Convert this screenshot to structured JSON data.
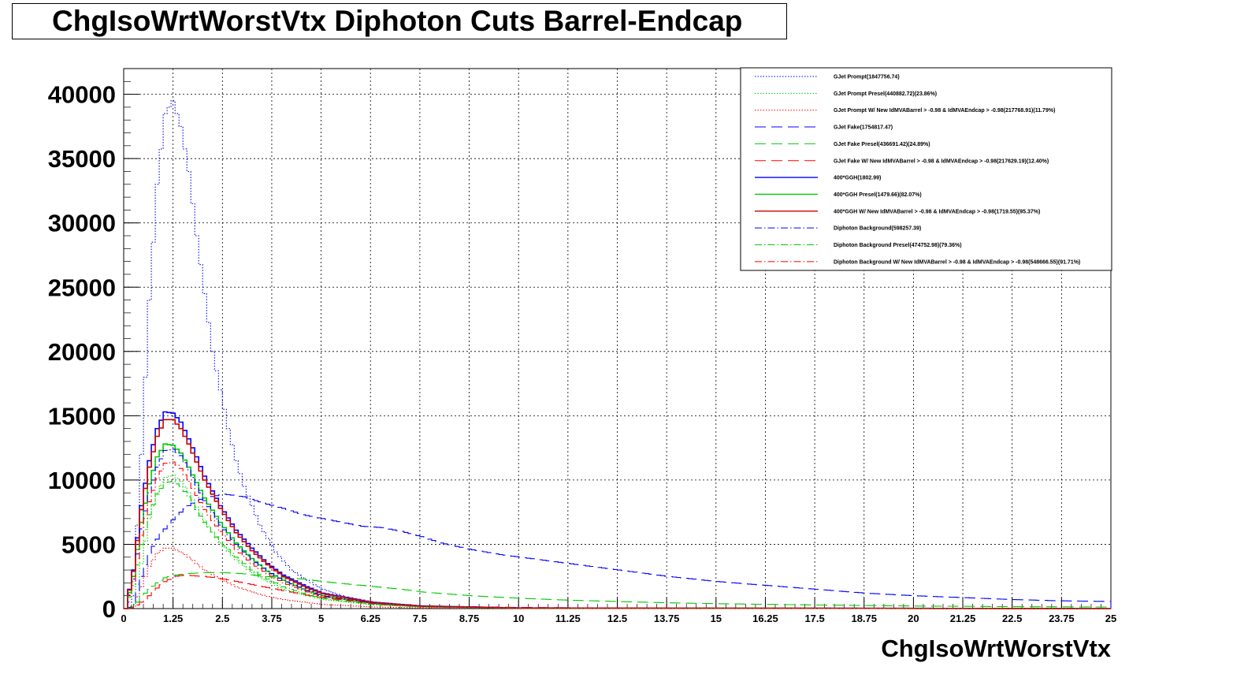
{
  "chart_data": {
    "type": "line",
    "title": "ChgIsoWrtWorstVtx Diphoton Cuts Barrel-Endcap",
    "xlabel": "ChgIsoWrtWorstVtx",
    "ylabel": "",
    "xlim": [
      0,
      25
    ],
    "ylim": [
      0,
      42000
    ],
    "grid": true,
    "legend_position": "top-right",
    "x_ticks": [
      "0",
      "1.25",
      "2.5",
      "3.75",
      "5",
      "6.25",
      "7.5",
      "8.75",
      "10",
      "11.25",
      "12.5",
      "13.75",
      "15",
      "16.25",
      "17.5",
      "18.75",
      "20",
      "21.25",
      "22.5",
      "23.75",
      "25"
    ],
    "y_ticks": [
      "0",
      "5000",
      "10000",
      "15000",
      "20000",
      "25000",
      "30000",
      "35000",
      "40000"
    ],
    "series": [
      {
        "name": "GJet Prompt(1847756.74)",
        "color": "#0000ff",
        "style": "dotted",
        "points": [
          [
            0,
            0
          ],
          [
            0.2,
            1000
          ],
          [
            0.4,
            12000
          ],
          [
            0.6,
            24000
          ],
          [
            0.8,
            33000
          ],
          [
            1.0,
            38500
          ],
          [
            1.2,
            39500
          ],
          [
            1.4,
            37500
          ],
          [
            1.6,
            34000
          ],
          [
            1.8,
            29000
          ],
          [
            2.0,
            24500
          ],
          [
            2.2,
            20000
          ],
          [
            2.4,
            17000
          ],
          [
            2.6,
            14000
          ],
          [
            2.8,
            11500
          ],
          [
            3.0,
            9500
          ],
          [
            3.4,
            6500
          ],
          [
            3.8,
            4400
          ],
          [
            4.2,
            3000
          ],
          [
            4.6,
            2200
          ],
          [
            5.0,
            1500
          ],
          [
            5.6,
            900
          ],
          [
            6.25,
            500
          ],
          [
            7.5,
            200
          ],
          [
            10,
            60
          ],
          [
            15,
            20
          ],
          [
            25,
            0
          ]
        ]
      },
      {
        "name": "GJet Prompt Presel(440882.72)(23.86%)",
        "color": "#00cc00",
        "style": "dotted",
        "points": [
          [
            0,
            0
          ],
          [
            0.2,
            300
          ],
          [
            0.4,
            3500
          ],
          [
            0.6,
            7000
          ],
          [
            0.8,
            9000
          ],
          [
            1.0,
            10200
          ],
          [
            1.2,
            10400
          ],
          [
            1.4,
            9900
          ],
          [
            1.6,
            9000
          ],
          [
            1.8,
            7900
          ],
          [
            2.0,
            6800
          ],
          [
            2.4,
            5100
          ],
          [
            2.8,
            3800
          ],
          [
            3.2,
            2800
          ],
          [
            3.6,
            2100
          ],
          [
            4.0,
            1500
          ],
          [
            4.6,
            1000
          ],
          [
            5.0,
            700
          ],
          [
            6.25,
            300
          ],
          [
            7.5,
            120
          ],
          [
            10,
            30
          ],
          [
            25,
            0
          ]
        ]
      },
      {
        "name": "GJet Prompt W/ New IdMVABarrel > -0.98 & IdMVAEndcap > -0.98(217768.91)(11.79%)",
        "color": "#ff0000",
        "style": "dotted",
        "points": [
          [
            0,
            0
          ],
          [
            0.2,
            150
          ],
          [
            0.4,
            1700
          ],
          [
            0.6,
            3300
          ],
          [
            0.8,
            4300
          ],
          [
            1.0,
            4700
          ],
          [
            1.2,
            4700
          ],
          [
            1.4,
            4400
          ],
          [
            1.6,
            4000
          ],
          [
            1.8,
            3500
          ],
          [
            2.0,
            3000
          ],
          [
            2.4,
            2300
          ],
          [
            2.8,
            1700
          ],
          [
            3.2,
            1300
          ],
          [
            3.6,
            950
          ],
          [
            4.0,
            700
          ],
          [
            5.0,
            320
          ],
          [
            6.25,
            130
          ],
          [
            7.5,
            50
          ],
          [
            10,
            10
          ],
          [
            25,
            0
          ]
        ]
      },
      {
        "name": "GJet Fake(1754817.47)",
        "color": "#0000ff",
        "style": "dashed",
        "points": [
          [
            0,
            0
          ],
          [
            0.2,
            200
          ],
          [
            0.4,
            2500
          ],
          [
            0.6,
            4300
          ],
          [
            0.8,
            5400
          ],
          [
            1.0,
            6200
          ],
          [
            1.2,
            6900
          ],
          [
            1.4,
            7500
          ],
          [
            1.6,
            8000
          ],
          [
            1.8,
            8400
          ],
          [
            2.0,
            8600
          ],
          [
            2.5,
            8900
          ],
          [
            3.0,
            8700
          ],
          [
            3.5,
            8200
          ],
          [
            4.0,
            7800
          ],
          [
            4.5,
            7300
          ],
          [
            5.0,
            7000
          ],
          [
            5.5,
            6700
          ],
          [
            6.0,
            6400
          ],
          [
            6.5,
            6300
          ],
          [
            7.0,
            6000
          ],
          [
            7.5,
            5600
          ],
          [
            8.0,
            5100
          ],
          [
            8.75,
            4600
          ],
          [
            9.5,
            4200
          ],
          [
            10,
            4000
          ],
          [
            11.25,
            3500
          ],
          [
            12.5,
            3000
          ],
          [
            13.75,
            2500
          ],
          [
            15,
            2100
          ],
          [
            16.25,
            1800
          ],
          [
            17.5,
            1500
          ],
          [
            18.75,
            1200
          ],
          [
            20,
            1000
          ],
          [
            21.25,
            850
          ],
          [
            22.5,
            700
          ],
          [
            23.75,
            600
          ],
          [
            25,
            550
          ]
        ]
      },
      {
        "name": "GJet Fake Presel(436691.42)(24.89%)",
        "color": "#00cc00",
        "style": "dashed",
        "points": [
          [
            0,
            0
          ],
          [
            0.2,
            100
          ],
          [
            0.4,
            900
          ],
          [
            0.6,
            1500
          ],
          [
            0.8,
            2000
          ],
          [
            1.0,
            2400
          ],
          [
            1.25,
            2600
          ],
          [
            1.5,
            2700
          ],
          [
            2.0,
            2800
          ],
          [
            2.5,
            2800
          ],
          [
            3.0,
            2700
          ],
          [
            3.5,
            2500
          ],
          [
            4.0,
            2400
          ],
          [
            4.5,
            2300
          ],
          [
            5.0,
            2100
          ],
          [
            6.0,
            1800
          ],
          [
            7.0,
            1500
          ],
          [
            7.5,
            1300
          ],
          [
            8.75,
            1000
          ],
          [
            10,
            800
          ],
          [
            11.25,
            650
          ],
          [
            12.5,
            550
          ],
          [
            13.75,
            450
          ],
          [
            15,
            380
          ],
          [
            17.5,
            280
          ],
          [
            20,
            200
          ],
          [
            22.5,
            150
          ],
          [
            25,
            120
          ]
        ]
      },
      {
        "name": "GJet Fake W/ New IdMVABarrel > -0.98 & IdMVAEndcap > -0.98(217629.19)(12.40%)",
        "color": "#ff0000",
        "style": "dashed",
        "points": [
          [
            0,
            0
          ],
          [
            0.2,
            60
          ],
          [
            0.4,
            500
          ],
          [
            0.6,
            1000
          ],
          [
            0.8,
            1600
          ],
          [
            1.0,
            2100
          ],
          [
            1.25,
            2500
          ],
          [
            1.5,
            2600
          ],
          [
            2.0,
            2500
          ],
          [
            2.5,
            2300
          ],
          [
            3.0,
            2000
          ],
          [
            3.5,
            1700
          ],
          [
            4.0,
            1400
          ],
          [
            4.5,
            1100
          ],
          [
            5.0,
            850
          ],
          [
            6.0,
            500
          ],
          [
            7.0,
            300
          ],
          [
            7.5,
            220
          ],
          [
            8.75,
            140
          ],
          [
            10,
            90
          ],
          [
            12.5,
            40
          ],
          [
            15,
            20
          ],
          [
            25,
            0
          ]
        ]
      },
      {
        "name": "400*GGH(1802.99)",
        "color": "#0000ff",
        "style": "solid",
        "points": [
          [
            0,
            0
          ],
          [
            0.2,
            3000
          ],
          [
            0.4,
            8000
          ],
          [
            0.6,
            11500
          ],
          [
            0.8,
            14000
          ],
          [
            1.0,
            15300
          ],
          [
            1.2,
            15200
          ],
          [
            1.4,
            14500
          ],
          [
            1.6,
            13200
          ],
          [
            1.8,
            11800
          ],
          [
            2.0,
            10300
          ],
          [
            2.4,
            8000
          ],
          [
            2.8,
            6100
          ],
          [
            3.2,
            4700
          ],
          [
            3.6,
            3500
          ],
          [
            4.0,
            2600
          ],
          [
            4.6,
            1700
          ],
          [
            5.0,
            1200
          ],
          [
            6.25,
            500
          ],
          [
            7.5,
            200
          ],
          [
            10,
            50
          ],
          [
            25,
            0
          ]
        ]
      },
      {
        "name": "400*GGH Presel(1479.66)(82.07%)",
        "color": "#00cc00",
        "style": "solid",
        "points": [
          [
            0,
            0
          ],
          [
            0.2,
            2500
          ],
          [
            0.4,
            6700
          ],
          [
            0.6,
            9700
          ],
          [
            0.8,
            11800
          ],
          [
            1.0,
            12800
          ],
          [
            1.2,
            12700
          ],
          [
            1.4,
            12100
          ],
          [
            1.6,
            11000
          ],
          [
            1.8,
            9800
          ],
          [
            2.0,
            8600
          ],
          [
            2.4,
            6700
          ],
          [
            2.8,
            5100
          ],
          [
            3.2,
            3900
          ],
          [
            3.6,
            2900
          ],
          [
            4.0,
            2200
          ],
          [
            4.6,
            1400
          ],
          [
            5.0,
            1000
          ],
          [
            6.25,
            400
          ],
          [
            7.5,
            160
          ],
          [
            10,
            40
          ],
          [
            25,
            0
          ]
        ]
      },
      {
        "name": "400*GGH W/ New IdMVABarrel > -0.98 & IdMVAEndcap > -0.98(1719.55)(95.37%)",
        "color": "#cc0000",
        "style": "solid",
        "points": [
          [
            0,
            0
          ],
          [
            0.2,
            2900
          ],
          [
            0.4,
            7700
          ],
          [
            0.6,
            11000
          ],
          [
            0.8,
            13400
          ],
          [
            1.0,
            14700
          ],
          [
            1.2,
            14700
          ],
          [
            1.4,
            14000
          ],
          [
            1.6,
            12800
          ],
          [
            1.8,
            11400
          ],
          [
            2.0,
            10000
          ],
          [
            2.4,
            7800
          ],
          [
            2.8,
            5900
          ],
          [
            3.2,
            4500
          ],
          [
            3.6,
            3400
          ],
          [
            4.0,
            2500
          ],
          [
            4.6,
            1600
          ],
          [
            5.0,
            1150
          ],
          [
            6.25,
            480
          ],
          [
            7.5,
            190
          ],
          [
            10,
            45
          ],
          [
            25,
            0
          ]
        ]
      },
      {
        "name": "Diphoton Background(598257.39)",
        "color": "#0000ff",
        "style": "dashdot",
        "points": [
          [
            0,
            0
          ],
          [
            0.2,
            2300
          ],
          [
            0.4,
            6200
          ],
          [
            0.6,
            9000
          ],
          [
            0.8,
            11000
          ],
          [
            1.0,
            12300
          ],
          [
            1.2,
            12400
          ],
          [
            1.4,
            11900
          ],
          [
            1.6,
            10800
          ],
          [
            1.8,
            9600
          ],
          [
            2.0,
            8400
          ],
          [
            2.4,
            6500
          ],
          [
            2.8,
            5000
          ],
          [
            3.2,
            3800
          ],
          [
            3.6,
            2900
          ],
          [
            4.0,
            2200
          ],
          [
            4.6,
            1400
          ],
          [
            5.0,
            1000
          ],
          [
            6.25,
            420
          ],
          [
            7.5,
            170
          ],
          [
            10,
            40
          ],
          [
            25,
            0
          ]
        ]
      },
      {
        "name": "Diphoton Background Presel(474752.98)(79.36%)",
        "color": "#00cc00",
        "style": "dashdot",
        "points": [
          [
            0,
            0
          ],
          [
            0.2,
            1800
          ],
          [
            0.4,
            5000
          ],
          [
            0.6,
            7300
          ],
          [
            0.8,
            8900
          ],
          [
            1.0,
            9800
          ],
          [
            1.2,
            9900
          ],
          [
            1.4,
            9500
          ],
          [
            1.6,
            8700
          ],
          [
            1.8,
            7700
          ],
          [
            2.0,
            6700
          ],
          [
            2.4,
            5200
          ],
          [
            2.8,
            4000
          ],
          [
            3.2,
            3000
          ],
          [
            3.6,
            2300
          ],
          [
            4.0,
            1700
          ],
          [
            4.6,
            1100
          ],
          [
            5.0,
            800
          ],
          [
            6.25,
            330
          ],
          [
            7.5,
            130
          ],
          [
            10,
            30
          ],
          [
            25,
            0
          ]
        ]
      },
      {
        "name": "Diphoton Background W/ New IdMVABarrel > -0.98 & IdMVAEndcap > -0.98(548666.55)(91.71%)",
        "color": "#ff0000",
        "style": "dashdot",
        "points": [
          [
            0,
            0
          ],
          [
            0.2,
            2100
          ],
          [
            0.4,
            5700
          ],
          [
            0.6,
            8300
          ],
          [
            0.8,
            10100
          ],
          [
            1.0,
            11300
          ],
          [
            1.2,
            11400
          ],
          [
            1.4,
            10900
          ],
          [
            1.6,
            9900
          ],
          [
            1.8,
            8800
          ],
          [
            2.0,
            7700
          ],
          [
            2.4,
            6000
          ],
          [
            2.8,
            4600
          ],
          [
            3.2,
            3500
          ],
          [
            3.6,
            2700
          ],
          [
            4.0,
            2000
          ],
          [
            4.6,
            1300
          ],
          [
            5.0,
            920
          ],
          [
            6.25,
            390
          ],
          [
            7.5,
            155
          ],
          [
            10,
            36
          ],
          [
            25,
            0
          ]
        ]
      }
    ]
  }
}
